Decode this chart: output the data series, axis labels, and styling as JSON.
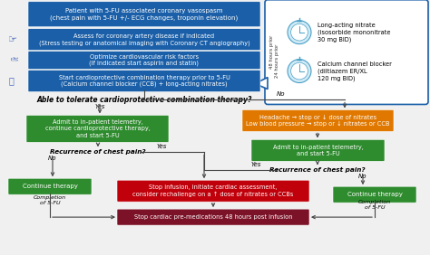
{
  "bg_color": "#f0f0f0",
  "blue_color": "#1a5fa8",
  "green_color": "#2e8b2e",
  "orange_color": "#e07800",
  "red_color": "#c0000a",
  "dark_red_color": "#7b1228",
  "white": "#ffffff",
  "arrow_color": "#444444",
  "panel_border": "#1a5fa8",
  "stopwatch_fill": "#d0eaf5",
  "stopwatch_border": "#4aa0c8",
  "box1_text": "Patient with 5-FU associated coronary vasospasm\n(chest pain with 5-FU +/- ECG changes, troponin elevation)",
  "box2_text": "Assess for coronary artery disease if indicated\n(Stress testing or anatomical imaging with Coronary CT angiography)",
  "box3_text": "Optimize cardiovascular risk factors\n(If indicated start aspirin and statin)",
  "box4_text": "Start cardioprotective combination therapy prior to 5-FU\n(Calcium channel blocker (CCB) + long-acting nitrates)",
  "question1": "Able to tolerate cardioprotective combination therapy?",
  "nitrate_text": "Long-acting nitrate\n(isosorbide mononitrate\n30 mg BID)",
  "ccb_text": "Calcium channel blocker\n(diltiazem ER/XL\n120 mg BID)",
  "timing_48": "48 hours prior",
  "timing_24": "24 hours prior",
  "yes": "Yes",
  "no": "No",
  "green_left_text": "Admit to in-patient telemetry,\ncontinue cardioprotective therapy,\nand start 5-FU",
  "orange_text": "Headache → stop or ↓ dose of nitrates\nLow blood pressure → stop or ↓ nitrates or CCB",
  "green_right_text": "Admit to in-patient telemetry,\nand start 5-FU",
  "q2_left": "Recurrence of chest pain?",
  "q2_right": "Recurrence of chest pain?",
  "continue": "Continue therapy",
  "red_text": "Stop infusion, initiate cardiac assessment,\nconsider rechallenge on a ↑ dose of nitrates or CCBs",
  "dark_red_text": "Stop cardiac pre-medications 48 hours post infusion",
  "completion": "Completion\nof 5-FU"
}
